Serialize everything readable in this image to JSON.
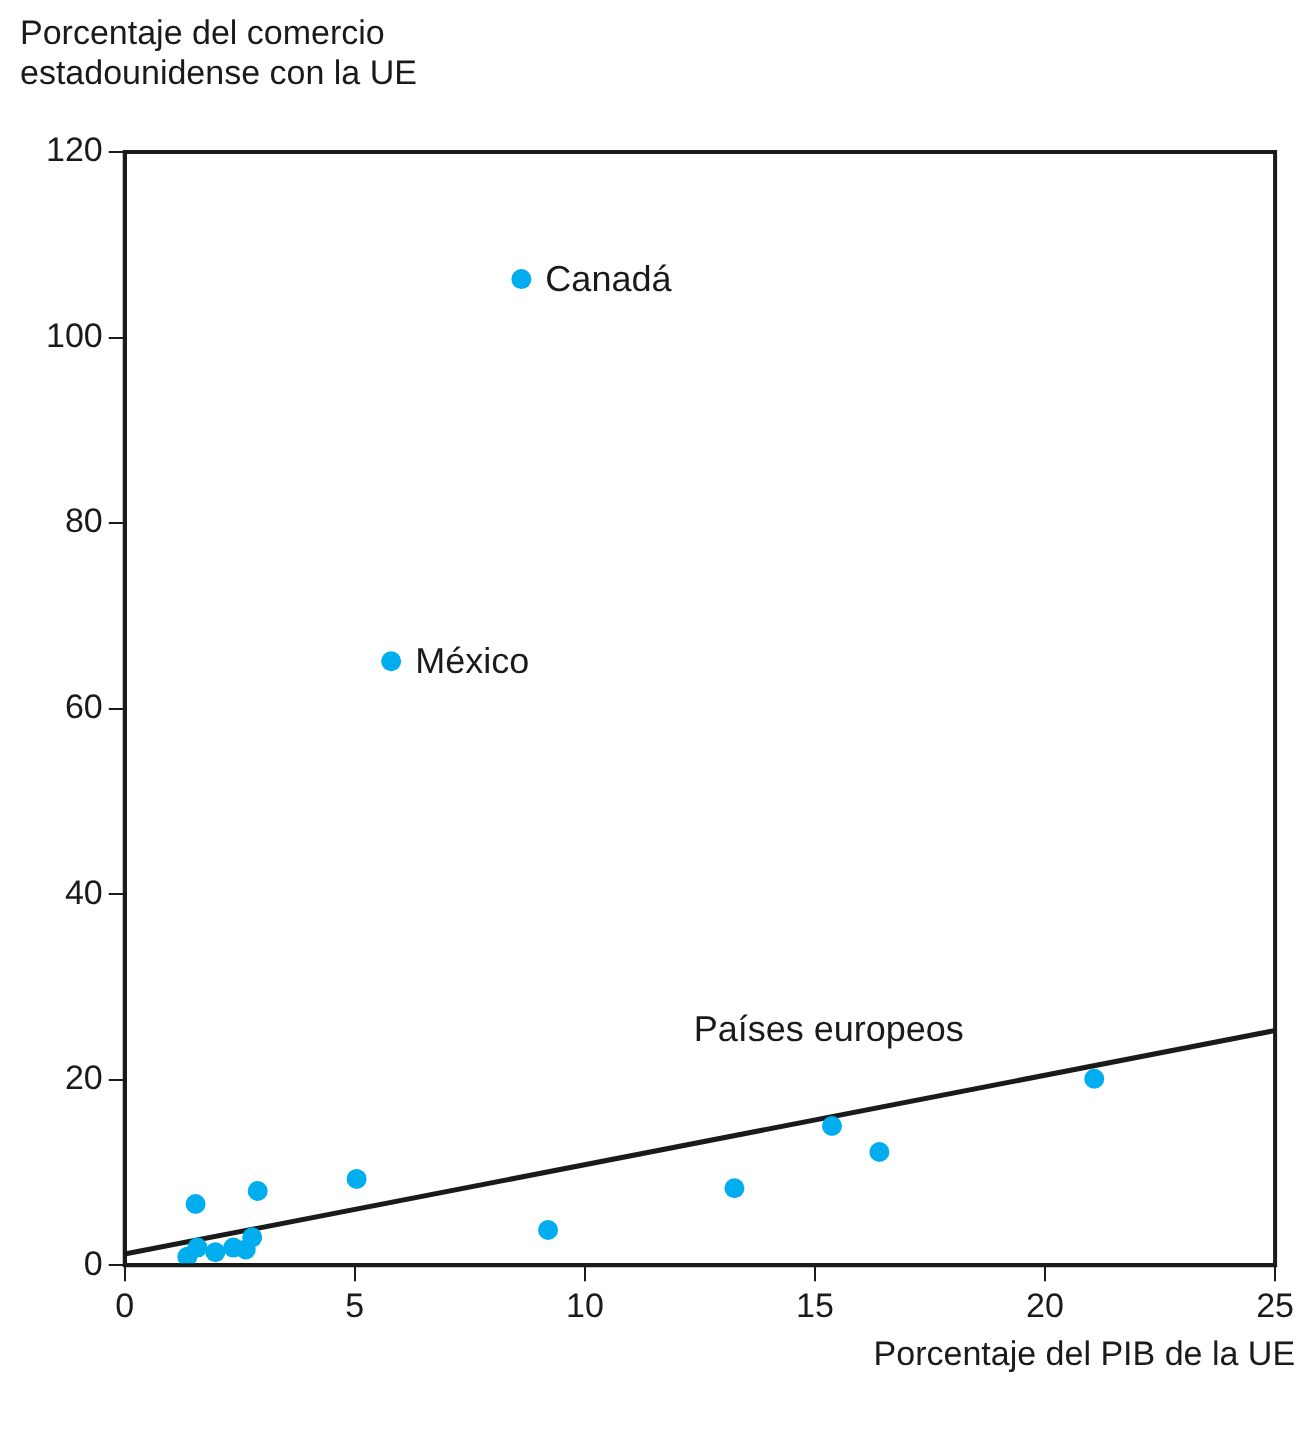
{
  "chart_data": {
    "type": "scatter",
    "xlabel": "Porcentaje del PIB de la UE",
    "ylabel": "Porcentaje del comercio\nestadounidense con la UE",
    "xlim": [
      0,
      25
    ],
    "xticks": [
      0,
      5,
      10,
      15,
      20,
      25
    ],
    "ylim": [
      0,
      120
    ],
    "yticks": [
      0,
      20,
      40,
      60,
      80,
      100,
      120
    ],
    "grid": false,
    "legend": false,
    "marker": "circle",
    "series": [
      {
        "color": "#00aeef",
        "x": [
          1.54,
          2.89,
          5.04,
          9.2,
          1.36,
          1.58,
          1.97,
          2.36,
          2.63,
          2.77,
          13.25,
          15.37,
          16.4,
          21.07,
          8.62,
          5.79
        ],
        "values": [
          6.6,
          8.0,
          9.3,
          3.8,
          0.9,
          1.9,
          1.4,
          1.9,
          1.7,
          3.0,
          8.3,
          15.0,
          12.2,
          20.1,
          106.3,
          65.1
        ]
      },
      {
        "type": "line",
        "color": "#1a1a1a",
        "x": [
          0,
          25
        ],
        "values": [
          1.2,
          25.3
        ],
        "line_style": "solid",
        "marker": "none"
      }
    ],
    "annotations": [
      {
        "text": "Canadá",
        "x": 8.62,
        "y": 106.3
      },
      {
        "text": "México",
        "x": 5.79,
        "y": 65.1
      },
      {
        "text": "Países europeos",
        "x": 15.3,
        "y": 16
      }
    ]
  }
}
